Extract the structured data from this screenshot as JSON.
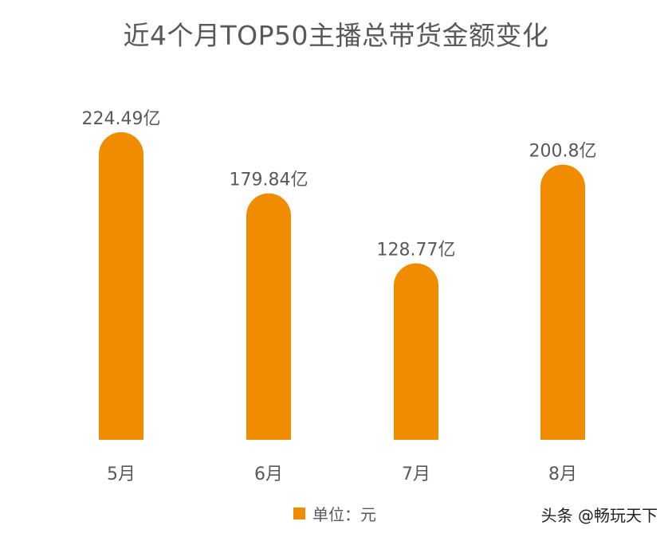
{
  "chart_data": {
    "type": "bar",
    "title": "近4个月TOP50主播总带货金额变化",
    "categories": [
      "5月",
      "6月",
      "7月",
      "8月"
    ],
    "values": [
      224.49,
      179.84,
      128.77,
      200.8
    ],
    "data_labels": [
      "224.49亿",
      "179.84亿",
      "128.77亿",
      "200.8亿"
    ],
    "unit": "亿",
    "legend": {
      "label": "单位：元",
      "position": "bottom"
    },
    "bar_color": "#f08c00",
    "grid": false
  },
  "watermark": "头条 @畅玩天下"
}
